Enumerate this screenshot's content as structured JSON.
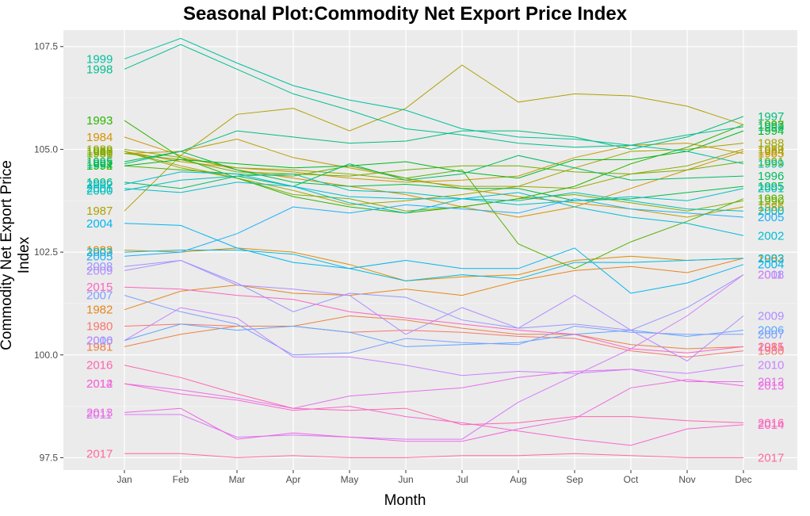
{
  "chart_data": {
    "type": "line",
    "title": "Seasonal Plot:Commodity Net Export Price Index",
    "xlabel": "Month",
    "ylabel": "Commodity Net Export Price Index",
    "categories": [
      "Jan",
      "Feb",
      "Mar",
      "Apr",
      "May",
      "Jun",
      "Jul",
      "Aug",
      "Sep",
      "Oct",
      "Nov",
      "Dec"
    ],
    "ylim": [
      97.2,
      107.9
    ],
    "yticks": [
      97.5,
      100.0,
      102.5,
      105.0,
      107.5
    ],
    "ytick_labels": [
      "97.5",
      "100.0",
      "102.5",
      "105.0",
      "107.5"
    ],
    "grid": true,
    "legend": "labels at line ends",
    "series": [
      {
        "name": "1980",
        "color": "#F8766D",
        "values": [
          100.7,
          100.75,
          100.7,
          100.7,
          100.55,
          100.6,
          100.55,
          100.45,
          100.4,
          100.1,
          99.95,
          100.1
        ]
      },
      {
        "name": "1981",
        "color": "#EE8044",
        "values": [
          100.2,
          100.5,
          100.7,
          100.7,
          100.95,
          100.85,
          100.65,
          100.5,
          100.5,
          100.25,
          100.15,
          100.2
        ]
      },
      {
        "name": "1982",
        "color": "#E7861B",
        "values": [
          101.1,
          101.55,
          101.7,
          101.5,
          101.45,
          101.6,
          101.45,
          101.8,
          102.05,
          102.15,
          102.0,
          102.35
        ]
      },
      {
        "name": "1983",
        "color": "#DE8C00",
        "values": [
          102.55,
          102.5,
          102.6,
          102.5,
          102.2,
          101.8,
          101.9,
          101.95,
          102.3,
          102.4,
          102.3,
          102.35
        ]
      },
      {
        "name": "1984",
        "color": "#D49200",
        "values": [
          105.3,
          104.85,
          104.5,
          104.3,
          104.1,
          103.9,
          103.6,
          103.35,
          103.6,
          104.05,
          104.5,
          104.95
        ]
      },
      {
        "name": "1985",
        "color": "#C99800",
        "values": [
          104.95,
          104.7,
          104.55,
          104.45,
          104.3,
          104.2,
          104.25,
          104.35,
          104.8,
          105.1,
          105.15,
          104.9
        ]
      },
      {
        "name": "1986",
        "color": "#BD9D00",
        "values": [
          104.9,
          104.95,
          105.25,
          104.8,
          104.55,
          104.3,
          104.05,
          103.85,
          103.7,
          103.55,
          103.35,
          103.6
        ]
      },
      {
        "name": "1987",
        "color": "#B0A100",
        "values": [
          103.5,
          104.85,
          105.85,
          106.0,
          105.45,
          106.0,
          107.05,
          106.15,
          106.35,
          106.3,
          106.05,
          105.6
        ]
      },
      {
        "name": "1988",
        "color": "#A3A500",
        "values": [
          104.95,
          104.6,
          104.3,
          104.0,
          103.65,
          103.75,
          103.9,
          104.1,
          104.55,
          104.95,
          105.0,
          105.15
        ]
      },
      {
        "name": "1989",
        "color": "#94A900",
        "values": [
          105.0,
          104.8,
          104.55,
          104.5,
          104.4,
          104.25,
          104.1,
          104.1,
          104.05,
          104.4,
          104.6,
          105.0
        ]
      },
      {
        "name": "1990",
        "color": "#83AD00",
        "values": [
          104.95,
          104.55,
          104.3,
          103.9,
          103.8,
          103.5,
          103.6,
          103.8,
          103.9,
          103.7,
          103.5,
          103.75
        ]
      },
      {
        "name": "1991",
        "color": "#6FB000",
        "values": [
          104.9,
          104.75,
          104.45,
          104.4,
          104.35,
          104.5,
          104.6,
          104.6,
          104.45,
          104.4,
          104.5,
          104.7
        ]
      },
      {
        "name": "1992",
        "color": "#55B300",
        "values": [
          104.6,
          104.5,
          104.4,
          104.35,
          104.6,
          104.3,
          104.5,
          102.7,
          102.1,
          102.75,
          103.25,
          103.8
        ]
      },
      {
        "name": "1993",
        "color": "#2CB600",
        "values": [
          105.7,
          104.8,
          104.3,
          103.85,
          103.6,
          103.45,
          103.6,
          103.8,
          104.1,
          104.65,
          105.05,
          105.6
        ]
      },
      {
        "name": "1994",
        "color": "#00B81C",
        "values": [
          104.6,
          104.75,
          104.65,
          104.55,
          104.6,
          104.7,
          104.45,
          104.3,
          104.75,
          104.75,
          104.95,
          105.45
        ]
      },
      {
        "name": "1995",
        "color": "#00BA48",
        "values": [
          104.7,
          104.95,
          104.5,
          104.2,
          104.1,
          104.15,
          104.05,
          104.05,
          103.75,
          103.8,
          103.95,
          104.1
        ]
      },
      {
        "name": "1996",
        "color": "#00BC64",
        "values": [
          104.2,
          104.05,
          104.35,
          104.1,
          104.65,
          104.25,
          104.4,
          104.85,
          104.55,
          104.25,
          104.3,
          104.35
        ]
      },
      {
        "name": "1997",
        "color": "#00BE7B",
        "values": [
          104.65,
          104.95,
          105.45,
          105.3,
          105.15,
          105.2,
          105.45,
          105.45,
          105.3,
          105.0,
          105.3,
          105.8
        ]
      },
      {
        "name": "1998",
        "color": "#00BF8F",
        "values": [
          106.95,
          107.55,
          106.95,
          106.35,
          105.95,
          105.5,
          105.35,
          105.15,
          105.05,
          105.1,
          105.35,
          105.55
        ]
      },
      {
        "name": "1999",
        "color": "#00C0A2",
        "values": [
          107.2,
          107.7,
          107.1,
          106.55,
          106.2,
          105.95,
          105.5,
          105.3,
          105.25,
          105.1,
          104.95,
          104.65
        ]
      },
      {
        "name": "2000",
        "color": "#00C0B3",
        "values": [
          104.0,
          104.25,
          104.35,
          104.4,
          104.0,
          103.95,
          103.8,
          103.75,
          103.95,
          103.75,
          103.55,
          103.5
        ]
      },
      {
        "name": "2001",
        "color": "#00BFC4",
        "values": [
          104.05,
          103.95,
          104.2,
          104.1,
          103.7,
          103.45,
          103.8,
          103.65,
          103.75,
          103.85,
          103.75,
          104.05
        ]
      },
      {
        "name": "2002",
        "color": "#00BDD4",
        "values": [
          104.15,
          104.45,
          104.4,
          104.1,
          103.85,
          103.8,
          103.8,
          103.95,
          103.6,
          103.35,
          103.2,
          102.9
        ]
      },
      {
        "name": "2003",
        "color": "#00BAE2",
        "values": [
          102.5,
          102.55,
          102.55,
          102.45,
          102.1,
          101.8,
          101.95,
          101.85,
          102.25,
          102.25,
          102.3,
          102.35
        ]
      },
      {
        "name": "2004",
        "color": "#00B6EF",
        "values": [
          103.2,
          103.15,
          102.6,
          102.25,
          102.1,
          102.3,
          102.1,
          102.1,
          102.6,
          101.5,
          101.75,
          102.2
        ]
      },
      {
        "name": "2005",
        "color": "#1CAFFA",
        "values": [
          102.4,
          102.5,
          102.95,
          103.6,
          103.45,
          103.65,
          103.55,
          103.45,
          103.8,
          103.55,
          103.45,
          103.35
        ]
      },
      {
        "name": "2006",
        "color": "#5CA7FF",
        "values": [
          100.35,
          100.75,
          100.6,
          100.7,
          100.55,
          100.2,
          100.25,
          100.3,
          100.5,
          100.6,
          100.45,
          100.6
        ]
      },
      {
        "name": "2007",
        "color": "#7F9EFF",
        "values": [
          101.45,
          101.05,
          100.75,
          100.0,
          100.05,
          100.4,
          100.3,
          100.25,
          100.7,
          100.55,
          100.5,
          100.5
        ]
      },
      {
        "name": "2008",
        "color": "#9A96FF",
        "values": [
          102.15,
          102.3,
          101.75,
          101.05,
          101.5,
          101.4,
          100.85,
          100.65,
          100.75,
          100.6,
          101.15,
          101.95
        ]
      },
      {
        "name": "2009",
        "color": "#B18DFF",
        "values": [
          102.05,
          102.3,
          101.7,
          101.6,
          101.45,
          100.5,
          101.15,
          100.65,
          101.45,
          100.6,
          99.85,
          100.95
        ]
      },
      {
        "name": "2010",
        "color": "#C583FF",
        "values": [
          100.35,
          101.15,
          100.9,
          99.95,
          99.95,
          99.75,
          99.5,
          99.6,
          99.55,
          99.65,
          99.55,
          99.75
        ]
      },
      {
        "name": "2011",
        "color": "#D77BF8",
        "values": [
          98.55,
          98.55,
          98.0,
          98.05,
          98.0,
          97.95,
          97.95,
          98.85,
          99.5,
          100.15,
          100.95,
          101.95
        ]
      },
      {
        "name": "2012",
        "color": "#E570ED",
        "values": [
          99.3,
          99.15,
          98.95,
          98.7,
          99.0,
          99.1,
          99.2,
          99.45,
          99.6,
          99.65,
          99.35,
          99.35
        ]
      },
      {
        "name": "2013",
        "color": "#F067E0",
        "values": [
          98.6,
          98.7,
          97.95,
          98.1,
          98.0,
          97.9,
          97.9,
          98.2,
          98.45,
          99.2,
          99.4,
          99.25
        ]
      },
      {
        "name": "2014",
        "color": "#F866D2",
        "values": [
          99.3,
          99.05,
          98.9,
          98.65,
          98.75,
          98.5,
          98.35,
          98.15,
          97.95,
          97.8,
          98.2,
          98.3
        ]
      },
      {
        "name": "2015",
        "color": "#FD64C2",
        "values": [
          101.65,
          101.6,
          101.45,
          101.35,
          101.05,
          100.9,
          100.75,
          100.6,
          100.5,
          100.15,
          100.05,
          100.2
        ]
      },
      {
        "name": "2016",
        "color": "#FF65B0",
        "values": [
          99.75,
          99.45,
          99.05,
          98.7,
          98.65,
          98.7,
          98.3,
          98.35,
          98.5,
          98.5,
          98.4,
          98.35
        ]
      },
      {
        "name": "2017",
        "color": "#FF6A9C",
        "values": [
          97.6,
          97.6,
          97.5,
          97.55,
          97.5,
          97.5,
          97.55,
          97.55,
          97.6,
          97.55,
          97.5,
          97.5
        ]
      }
    ]
  }
}
